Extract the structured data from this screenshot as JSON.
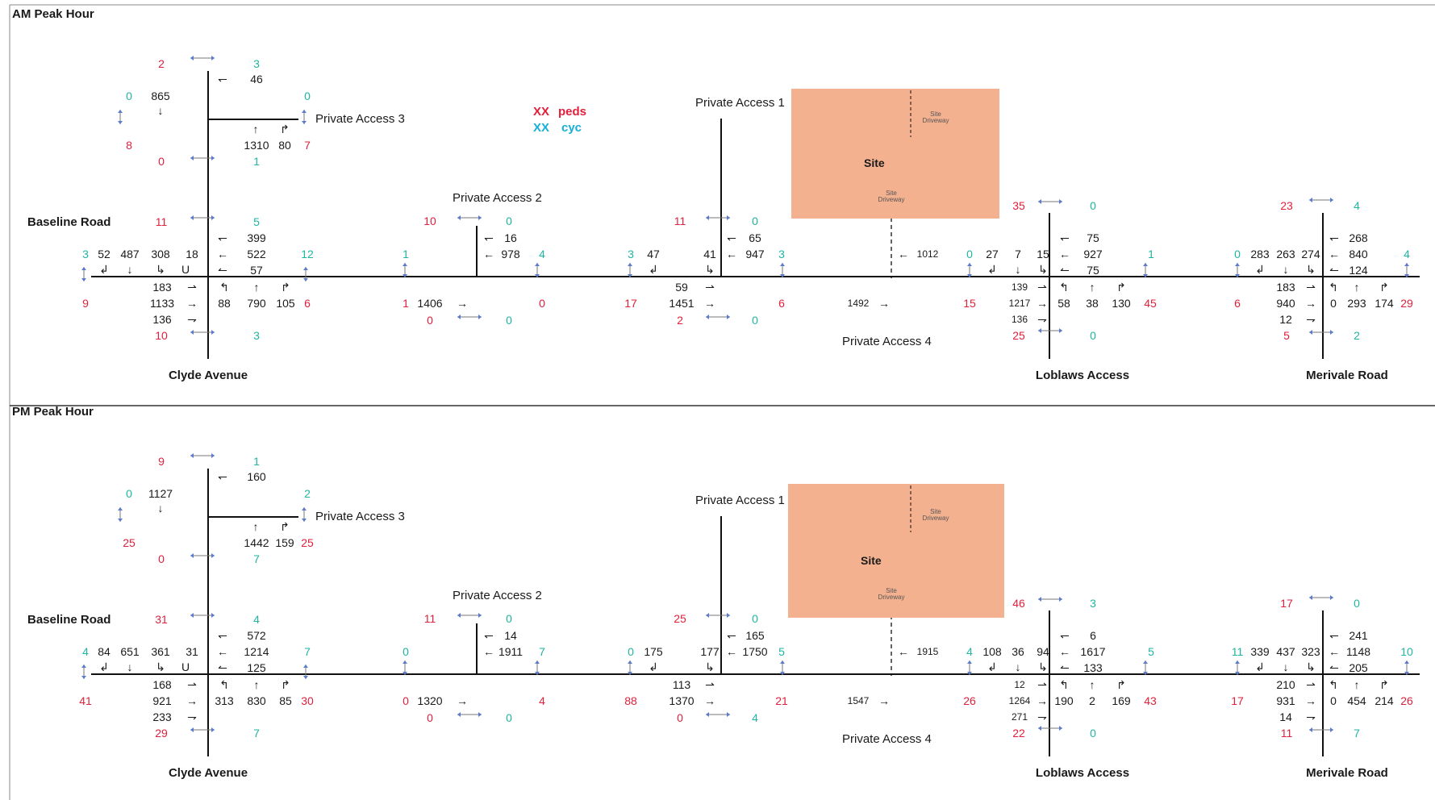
{
  "colors": {
    "pedestrian": "#e0203c",
    "cyclist": "#1fb5a0",
    "legend_cyclist": "#15b0d6",
    "site_fill": "#f4b190",
    "road": "#111111"
  },
  "legend": {
    "sym": "XX",
    "peds": "peds",
    "cyc": "cyc"
  },
  "panels": [
    {
      "id": "am",
      "title": "AM Peak Hour",
      "streets": {
        "baseline": "Baseline Road",
        "clyde": "Clyde Avenue",
        "loblaws": "Loblaws Access",
        "merivale": "Merivale Road",
        "pa1": "Private Access 1",
        "pa2": "Private Access 2",
        "pa3": "Private Access 3",
        "pa4": "Private Access 4"
      },
      "site": {
        "label": "Site",
        "driveway_top": "Site Driveway",
        "driveway_bottom": "Site Driveway"
      },
      "clyde": {
        "north_top": {
          "ped": "2",
          "cyc": "3",
          "wb_right": "46"
        },
        "pa3": {
          "ped_w": "8",
          "cyc_w": "0",
          "sb": "865",
          "cyc_e": "0",
          "ped_e": "7",
          "nb_thru": "1310",
          "nb_right": "80",
          "ped_s": "0",
          "cyc_s": "1"
        },
        "north_leg": {
          "ped": "11",
          "cyc": "5"
        },
        "wb": {
          "right": "399",
          "thru": "522",
          "left": "57"
        },
        "sb": {
          "right": "52",
          "thru": "487",
          "left": "308",
          "uturn": "18"
        },
        "cyc_west": "3",
        "ped_west": "9",
        "cyc_east": "12",
        "ped_east": "6",
        "eb": {
          "left": "183",
          "thru": "1133",
          "right": "136"
        },
        "nb": {
          "left": "88",
          "thru": "790",
          "right": "105"
        },
        "south_leg": {
          "ped": "10",
          "cyc": "3"
        }
      },
      "pa2": {
        "ped_n": "10",
        "cyc_n": "0",
        "wb_right": "16",
        "wb_thru": "978",
        "cyc_w": "1",
        "ped_w": "1",
        "cyc_e": "4",
        "ped_e": "0",
        "eb_thru": "1406",
        "ped_s": "0",
        "cyc_s": "0"
      },
      "pa1": {
        "ped_n": "11",
        "cyc_n": "0",
        "wb_right": "65",
        "wb_thru": "947",
        "sb_right": "47",
        "sb_left": "41",
        "cyc_w": "3",
        "ped_w": "17",
        "cyc_e": "3",
        "ped_e": "6",
        "eb_left": "59",
        "eb_thru": "1451",
        "ped_s": "2",
        "cyc_s": "0"
      },
      "pa4": {
        "wb_thru": "1012",
        "eb_thru": "1492"
      },
      "loblaws": {
        "ped_n": "35",
        "cyc_n": "0",
        "wb_right": "75",
        "wb_thru": "927",
        "wb_left": "75",
        "cyc_w": "0",
        "sb_right": "27",
        "sb_thru": "7",
        "sb_left": "15",
        "cyc_e": "1",
        "ped_w": "15",
        "eb_left": "139",
        "eb_thru": "1217",
        "eb_right": "136",
        "nb_left": "58",
        "nb_thru": "38",
        "nb_right": "130",
        "ped_e": "45",
        "ped_s": "25",
        "cyc_s": "0"
      },
      "merivale": {
        "ped_n": "23",
        "cyc_n": "4",
        "wb_right": "268",
        "wb_thru": "840",
        "wb_left": "124",
        "cyc_w": "0",
        "sb_right": "283",
        "sb_thru": "263",
        "sb_left": "274",
        "cyc_e": "4",
        "ped_w": "6",
        "eb_left": "183",
        "eb_thru": "940",
        "eb_right": "12",
        "nb_left": "0",
        "nb_thru": "293",
        "nb_right": "174",
        "ped_e": "29",
        "ped_s": "5",
        "cyc_s": "2"
      }
    },
    {
      "id": "pm",
      "title": "PM Peak Hour",
      "streets": {
        "baseline": "Baseline Road",
        "clyde": "Clyde Avenue",
        "loblaws": "Loblaws Access",
        "merivale": "Merivale Road",
        "pa1": "Private Access 1",
        "pa2": "Private Access 2",
        "pa3": "Private Access 3",
        "pa4": "Private Access 4"
      },
      "site": {
        "label": "Site",
        "driveway_top": "Site Driveway",
        "driveway_bottom": "Site Driveway"
      },
      "clyde": {
        "north_top": {
          "ped": "9",
          "cyc": "1",
          "wb_right": "160"
        },
        "pa3": {
          "ped_w": "25",
          "cyc_w": "0",
          "sb": "1127",
          "cyc_e": "2",
          "ped_e": "25",
          "nb_thru": "1442",
          "nb_right": "159",
          "ped_s": "0",
          "cyc_s": "7"
        },
        "north_leg": {
          "ped": "31",
          "cyc": "4"
        },
        "wb": {
          "right": "572",
          "thru": "1214",
          "left": "125"
        },
        "sb": {
          "right": "84",
          "thru": "651",
          "left": "361",
          "uturn": "31"
        },
        "cyc_west": "4",
        "ped_west": "41",
        "cyc_east": "7",
        "ped_east": "30",
        "eb": {
          "left": "168",
          "thru": "921",
          "right": "233"
        },
        "nb": {
          "left": "313",
          "thru": "830",
          "right": "85"
        },
        "south_leg": {
          "ped": "29",
          "cyc": "7"
        }
      },
      "pa2": {
        "ped_n": "11",
        "cyc_n": "0",
        "wb_right": "14",
        "wb_thru": "1911",
        "cyc_w": "0",
        "ped_w": "0",
        "cyc_e": "7",
        "ped_e": "4",
        "eb_thru": "1320",
        "ped_s": "0",
        "cyc_s": "0"
      },
      "pa1": {
        "ped_n": "25",
        "cyc_n": "0",
        "wb_right": "165",
        "wb_thru": "1750",
        "sb_right": "175",
        "sb_left": "177",
        "cyc_w": "0",
        "ped_w": "88",
        "cyc_e": "5",
        "ped_e": "21",
        "eb_left": "113",
        "eb_thru": "1370",
        "ped_s": "0",
        "cyc_s": "4"
      },
      "pa4": {
        "wb_thru": "1915",
        "eb_thru": "1547"
      },
      "loblaws": {
        "ped_n": "46",
        "cyc_n": "3",
        "wb_right": "6",
        "wb_thru": "1617",
        "wb_left": "133",
        "cyc_w": "4",
        "sb_right": "108",
        "sb_thru": "36",
        "sb_left": "94",
        "cyc_e": "5",
        "ped_w": "26",
        "eb_left": "12",
        "eb_thru": "1264",
        "eb_right": "271",
        "nb_left": "190",
        "nb_thru": "2",
        "nb_right": "169",
        "ped_e": "43",
        "ped_s": "22",
        "cyc_s": "0"
      },
      "merivale": {
        "ped_n": "17",
        "cyc_n": "0",
        "wb_right": "241",
        "wb_thru": "1148",
        "wb_left": "205",
        "cyc_w": "11",
        "sb_right": "339",
        "sb_thru": "437",
        "sb_left": "323",
        "cyc_e": "10",
        "ped_w": "17",
        "eb_left": "210",
        "eb_thru": "931",
        "eb_right": "14",
        "nb_left": "0",
        "nb_thru": "454",
        "nb_right": "214",
        "ped_e": "26",
        "ped_s": "11",
        "cyc_s": "7"
      }
    }
  ]
}
